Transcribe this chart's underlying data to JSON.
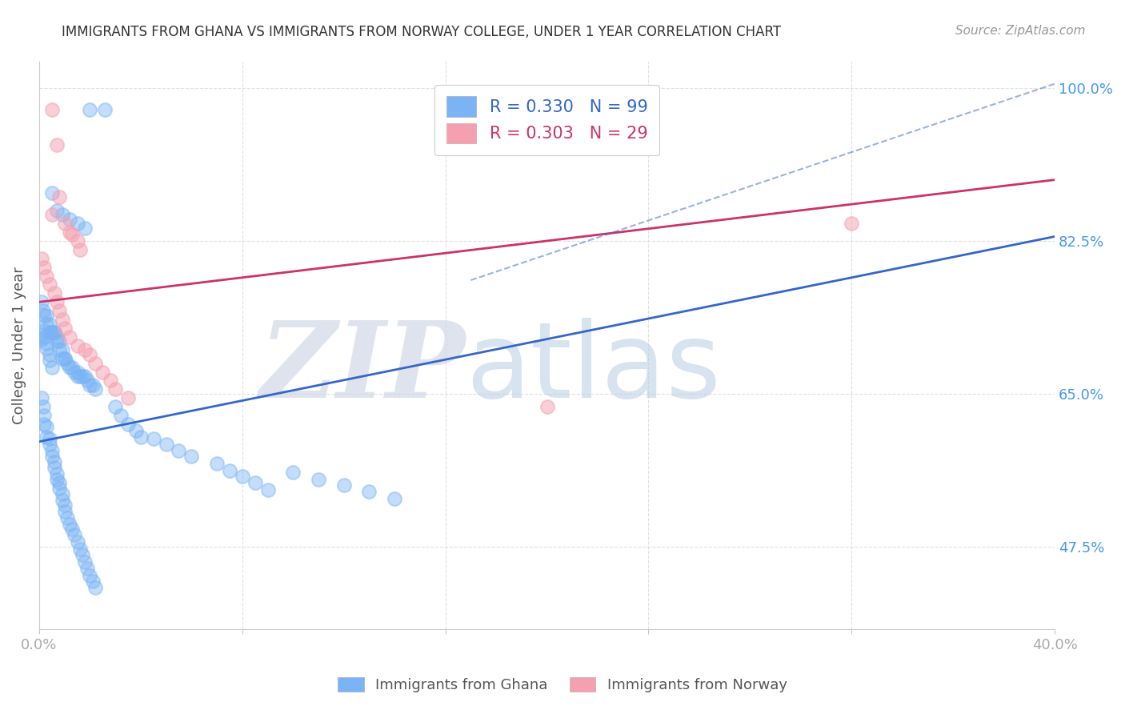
{
  "title": "IMMIGRANTS FROM GHANA VS IMMIGRANTS FROM NORWAY COLLEGE, UNDER 1 YEAR CORRELATION CHART",
  "source": "Source: ZipAtlas.com",
  "ylabel": "College, Under 1 year",
  "x_min": 0.0,
  "x_max": 0.4,
  "y_min": 0.38,
  "y_max": 1.03,
  "y_ticks": [
    1.0,
    0.825,
    0.65,
    0.475
  ],
  "y_tick_labels": [
    "100.0%",
    "82.5%",
    "65.0%",
    "47.5%"
  ],
  "ghana_color": "#7ab4f5",
  "norway_color": "#f5a0b0",
  "ghana_line_color": "#3366cc",
  "norway_line_color": "#cc3366",
  "ghana_R": "0.330",
  "ghana_N": "99",
  "norway_R": "0.303",
  "norway_N": "29",
  "ghana_trend": [
    0.0,
    0.4,
    0.595,
    0.83
  ],
  "norway_trend": [
    0.0,
    0.4,
    0.755,
    0.895
  ],
  "ghana_dashed_trend": [
    0.17,
    0.4,
    0.78,
    1.005
  ],
  "watermark_zip": "ZIP",
  "watermark_atlas": "atlas",
  "background_color": "#ffffff",
  "grid_color": "#e0e0e0",
  "ghana_scatter_x": [
    0.02,
    0.026,
    0.005,
    0.007,
    0.009,
    0.012,
    0.015,
    0.018,
    0.001,
    0.0015,
    0.002,
    0.003,
    0.003,
    0.004,
    0.004,
    0.005,
    0.005,
    0.006,
    0.006,
    0.007,
    0.007,
    0.008,
    0.008,
    0.009,
    0.009,
    0.01,
    0.01,
    0.011,
    0.012,
    0.013,
    0.014,
    0.015,
    0.015,
    0.016,
    0.017,
    0.018,
    0.019,
    0.02,
    0.021,
    0.022,
    0.001,
    0.0015,
    0.002,
    0.002,
    0.003,
    0.003,
    0.004,
    0.004,
    0.005,
    0.005,
    0.006,
    0.006,
    0.007,
    0.007,
    0.008,
    0.008,
    0.009,
    0.009,
    0.01,
    0.01,
    0.011,
    0.012,
    0.013,
    0.014,
    0.015,
    0.016,
    0.017,
    0.018,
    0.019,
    0.02,
    0.021,
    0.022,
    0.03,
    0.032,
    0.035,
    0.038,
    0.04,
    0.045,
    0.05,
    0.055,
    0.06,
    0.07,
    0.075,
    0.08,
    0.085,
    0.09,
    0.1,
    0.11,
    0.12,
    0.13,
    0.14,
    0.001,
    0.001,
    0.002,
    0.002,
    0.003,
    0.003,
    0.004,
    0.004,
    0.005
  ],
  "ghana_scatter_y": [
    0.975,
    0.975,
    0.88,
    0.86,
    0.855,
    0.85,
    0.845,
    0.84,
    0.755,
    0.745,
    0.74,
    0.74,
    0.73,
    0.73,
    0.72,
    0.72,
    0.72,
    0.72,
    0.72,
    0.715,
    0.71,
    0.71,
    0.7,
    0.7,
    0.69,
    0.69,
    0.69,
    0.685,
    0.68,
    0.68,
    0.675,
    0.675,
    0.67,
    0.67,
    0.67,
    0.67,
    0.665,
    0.66,
    0.66,
    0.655,
    0.645,
    0.635,
    0.625,
    0.615,
    0.612,
    0.6,
    0.598,
    0.592,
    0.585,
    0.578,
    0.572,
    0.565,
    0.558,
    0.552,
    0.548,
    0.542,
    0.535,
    0.528,
    0.522,
    0.515,
    0.508,
    0.5,
    0.495,
    0.488,
    0.48,
    0.472,
    0.465,
    0.457,
    0.45,
    0.442,
    0.435,
    0.428,
    0.635,
    0.625,
    0.615,
    0.608,
    0.6,
    0.598,
    0.592,
    0.585,
    0.578,
    0.57,
    0.562,
    0.555,
    0.548,
    0.54,
    0.56,
    0.552,
    0.545,
    0.538,
    0.53,
    0.718,
    0.712,
    0.722,
    0.715,
    0.708,
    0.702,
    0.695,
    0.688,
    0.68
  ],
  "norway_scatter_x": [
    0.005,
    0.007,
    0.008,
    0.005,
    0.01,
    0.012,
    0.013,
    0.015,
    0.016,
    0.001,
    0.002,
    0.003,
    0.004,
    0.006,
    0.007,
    0.008,
    0.009,
    0.01,
    0.012,
    0.015,
    0.018,
    0.02,
    0.022,
    0.025,
    0.028,
    0.03,
    0.035,
    0.32,
    0.2
  ],
  "norway_scatter_y": [
    0.975,
    0.935,
    0.875,
    0.855,
    0.845,
    0.835,
    0.832,
    0.825,
    0.815,
    0.805,
    0.795,
    0.785,
    0.775,
    0.765,
    0.755,
    0.745,
    0.735,
    0.725,
    0.715,
    0.705,
    0.7,
    0.695,
    0.685,
    0.675,
    0.665,
    0.655,
    0.645,
    0.845,
    0.635
  ]
}
